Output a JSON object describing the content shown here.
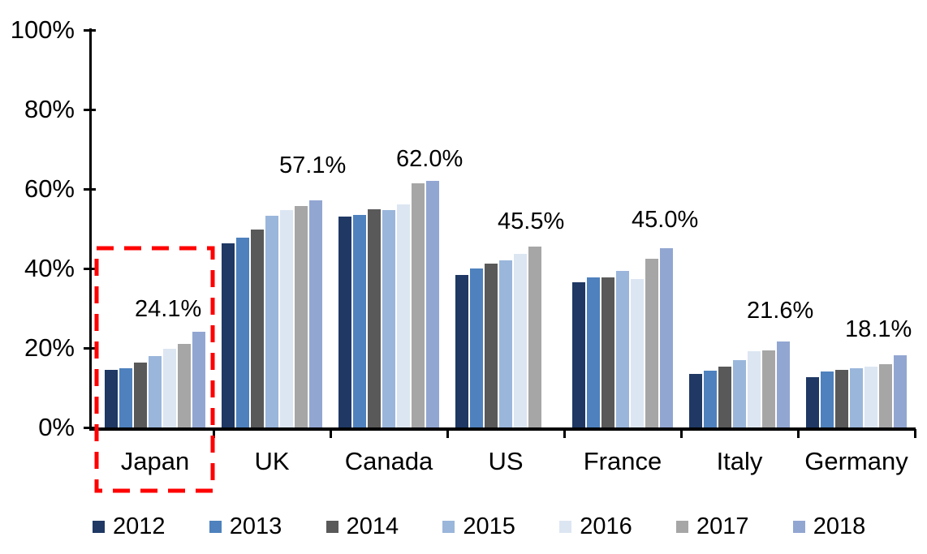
{
  "chart_data": {
    "type": "bar",
    "categories": [
      "Japan",
      "UK",
      "Canada",
      "US",
      "France",
      "Italy",
      "Germany"
    ],
    "series": [
      {
        "name": "2012",
        "color": "#1F3864",
        "values": [
          14.5,
          46.3,
          53.0,
          38.4,
          36.6,
          13.4,
          12.7
        ]
      },
      {
        "name": "2013",
        "color": "#4E81BD",
        "values": [
          14.8,
          47.7,
          53.4,
          40.1,
          37.7,
          14.3,
          14.0
        ]
      },
      {
        "name": "2014",
        "color": "#595959",
        "values": [
          16.4,
          49.8,
          54.9,
          41.2,
          37.7,
          15.4,
          14.4
        ]
      },
      {
        "name": "2015",
        "color": "#9AB6DB",
        "values": [
          18.0,
          53.3,
          54.6,
          42.1,
          39.4,
          16.9,
          14.8
        ]
      },
      {
        "name": "2016",
        "color": "#DCE6F2",
        "values": [
          19.7,
          54.6,
          56.2,
          43.7,
          37.4,
          19.1,
          15.3
        ]
      },
      {
        "name": "2017",
        "color": "#A6A6A6",
        "values": [
          21.0,
          55.7,
          61.4,
          45.5,
          42.5,
          19.3,
          16.0
        ]
      },
      {
        "name": "2018",
        "color": "#92A6D2",
        "values": [
          24.1,
          57.1,
          62.0,
          null,
          45.0,
          21.6,
          18.1
        ]
      }
    ],
    "annotations": [
      {
        "category": "Japan",
        "label": "24.1%"
      },
      {
        "category": "UK",
        "label": "57.1%"
      },
      {
        "category": "Canada",
        "label": "62.0%"
      },
      {
        "category": "US",
        "label": "45.5%"
      },
      {
        "category": "France",
        "label": "45.0%"
      },
      {
        "category": "Italy",
        "label": "21.6%"
      },
      {
        "category": "Germany",
        "label": "18.1%"
      }
    ],
    "yticks": [
      "0%",
      "20%",
      "40%",
      "60%",
      "80%",
      "100%"
    ],
    "ylim": [
      0,
      100
    ],
    "grid": false,
    "legend_position": "bottom",
    "axis_color": "#000000",
    "highlight": {
      "type": "dashed-box",
      "category": "Japan",
      "color": "#FF0000"
    }
  }
}
